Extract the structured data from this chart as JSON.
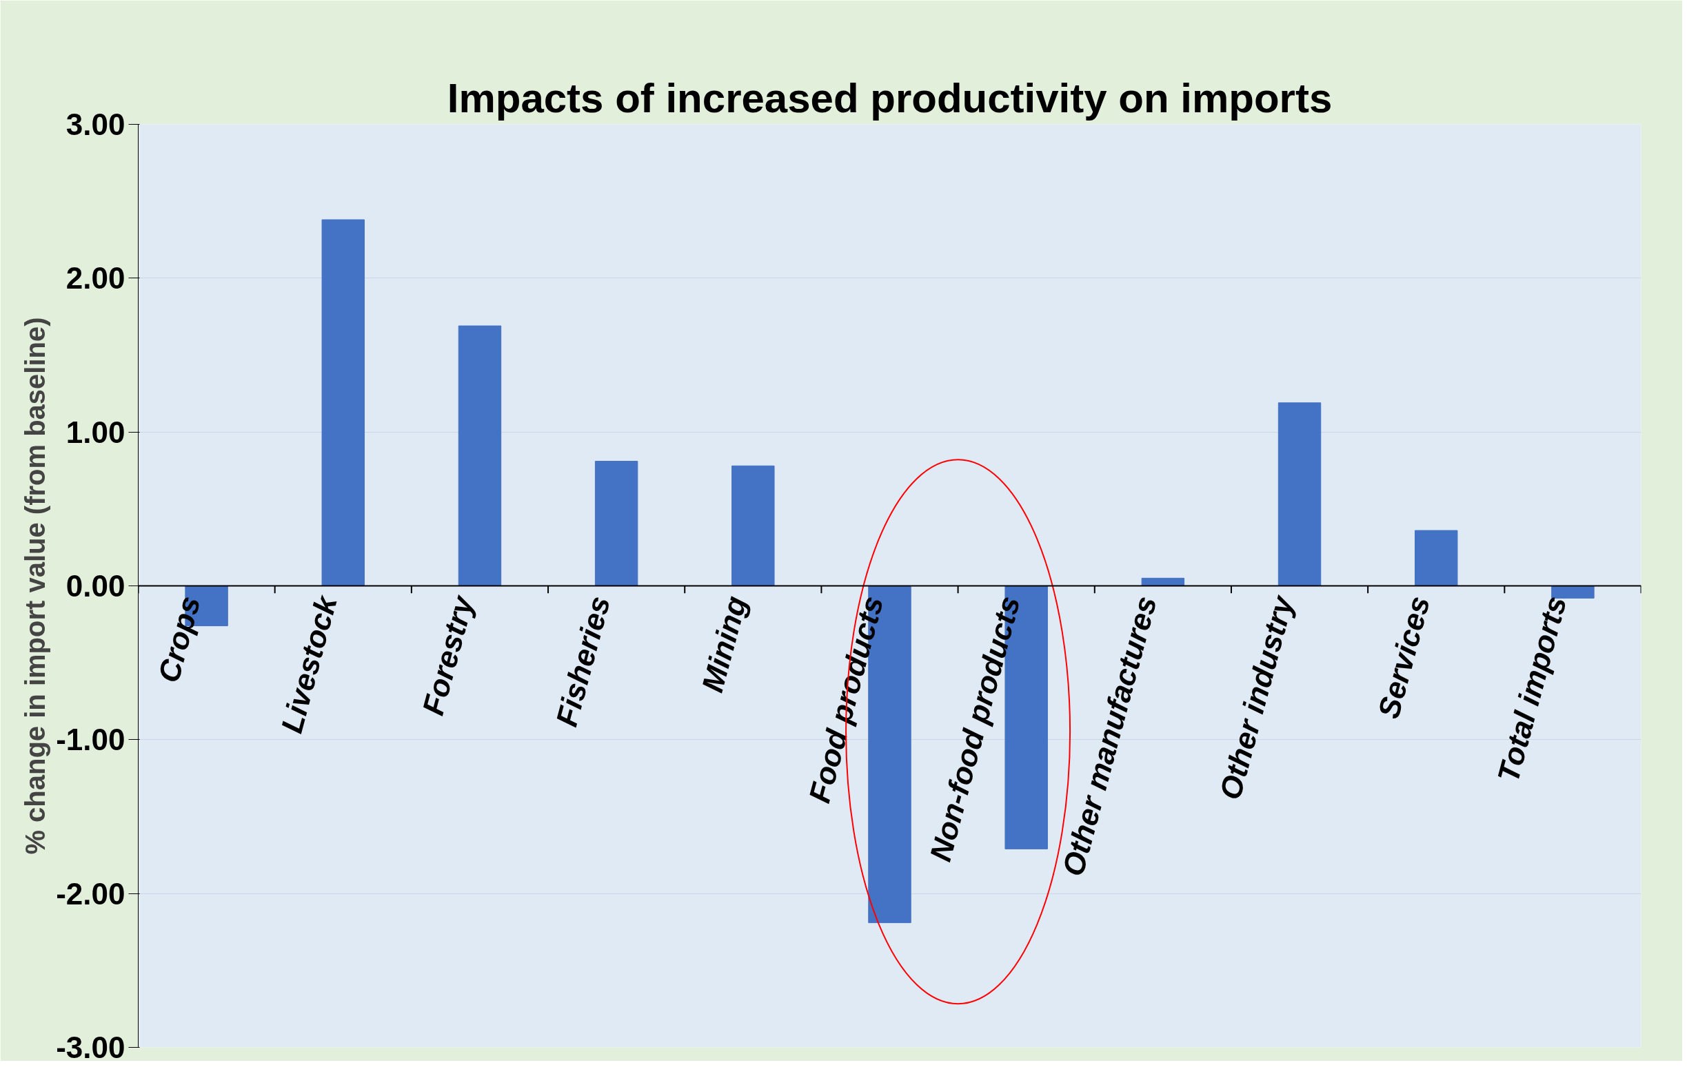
{
  "chart_data": {
    "type": "bar",
    "title": "Impacts of increased productivity on imports",
    "ylabel": "% change in import value (from baseline)",
    "categories": [
      "Crops",
      "Livestock",
      "Forestry",
      "Fisheries",
      "Mining",
      "Food products",
      "Non-food products",
      "Other manufactures",
      "Other industry",
      "Services",
      "Total imports"
    ],
    "values": [
      -0.26,
      2.38,
      1.69,
      0.81,
      0.78,
      -2.19,
      -1.71,
      0.05,
      1.19,
      0.36,
      -0.08
    ],
    "color": "#4472c4",
    "ylim": [
      -3,
      3
    ],
    "yticks": [
      {
        "value": -3,
        "label": "-3.00"
      },
      {
        "value": -2,
        "label": "-2.00"
      },
      {
        "value": -1,
        "label": "-1.00"
      },
      {
        "value": 0,
        "label": "0.00"
      },
      {
        "value": 1,
        "label": "1.00"
      },
      {
        "value": 2,
        "label": "2.00"
      },
      {
        "value": 3,
        "label": "3.00"
      }
    ],
    "grid": "y"
  }
}
